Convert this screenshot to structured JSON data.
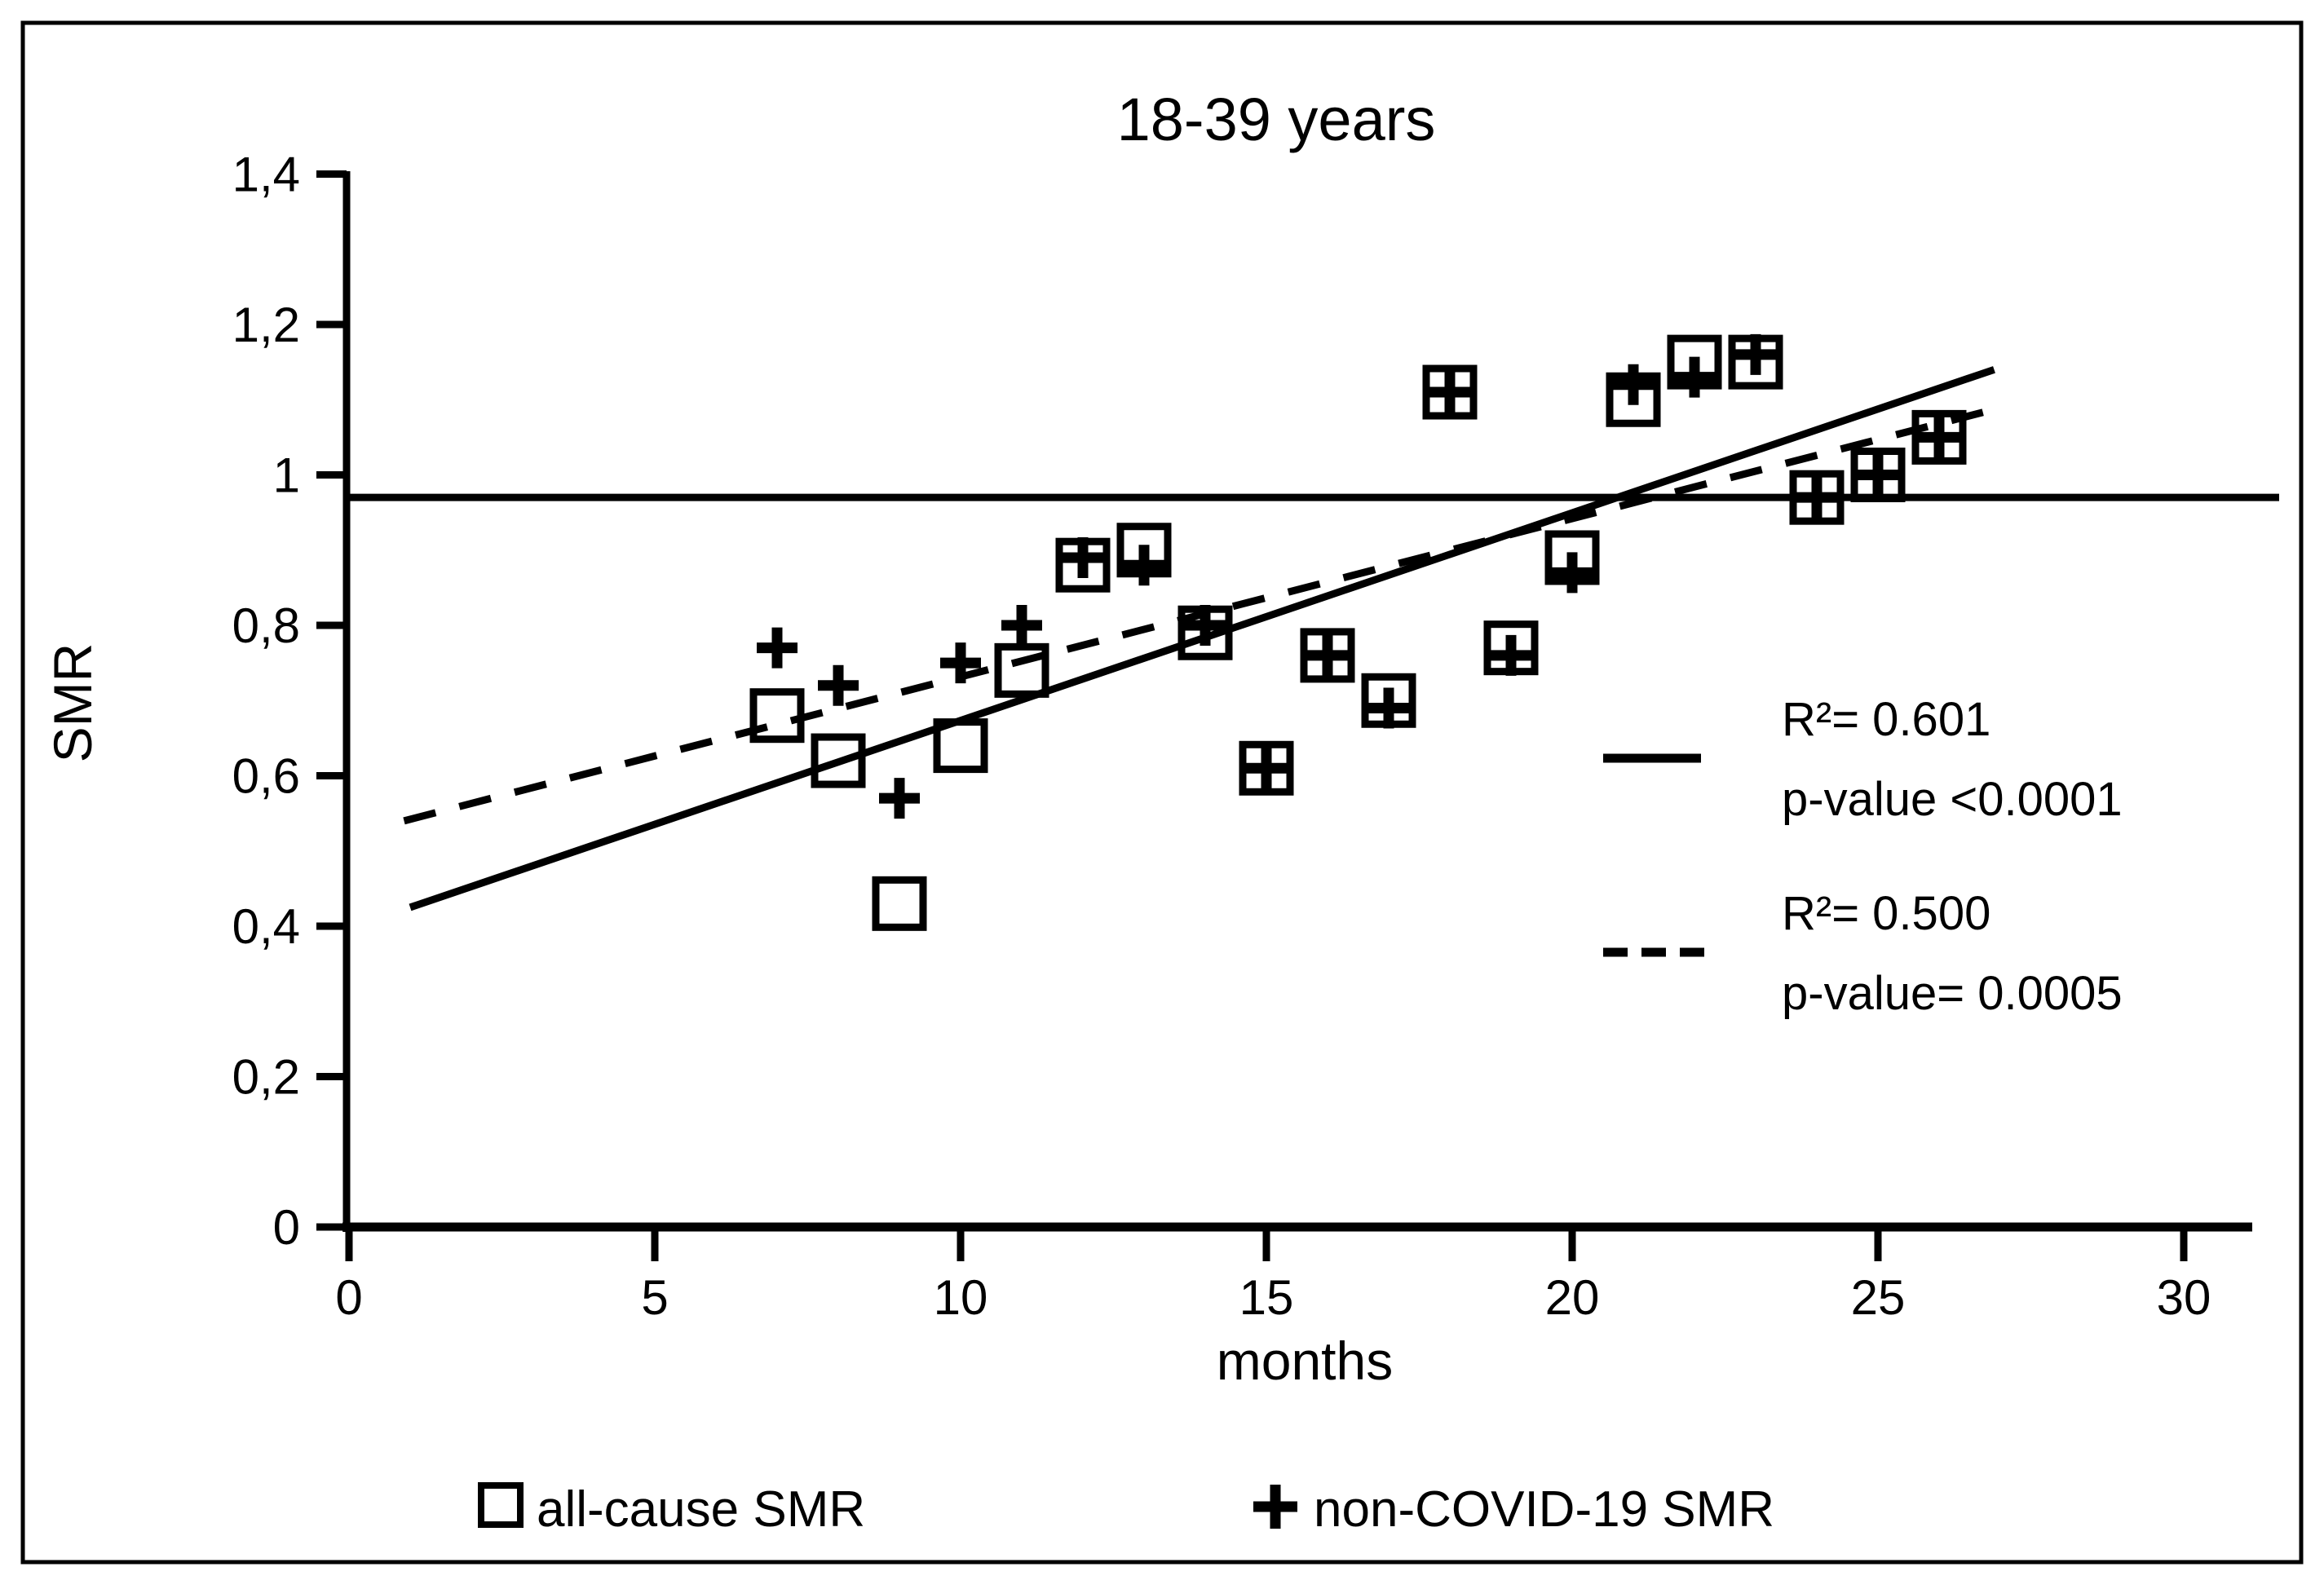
{
  "figure": {
    "background_color": "#ffffff",
    "ink_color": "#000000",
    "border": {
      "visible": true,
      "color": "#000000"
    }
  },
  "chart_data": {
    "type": "scatter",
    "title": "18-39 years",
    "xlabel": "months",
    "ylabel": "SMR",
    "xlim": [
      0,
      30
    ],
    "ylim": [
      0,
      1.4
    ],
    "x_ticks": [
      {
        "value": 0,
        "label": "0"
      },
      {
        "value": 5,
        "label": "5"
      },
      {
        "value": 10,
        "label": "10"
      },
      {
        "value": 15,
        "label": "15"
      },
      {
        "value": 20,
        "label": "20"
      },
      {
        "value": 25,
        "label": "25"
      },
      {
        "value": 30,
        "label": "30"
      }
    ],
    "y_ticks": [
      {
        "value": 1.4,
        "label": "1,4"
      },
      {
        "value": 1.2,
        "label": "1,2"
      },
      {
        "value": 1.0,
        "label": "1"
      },
      {
        "value": 0.8,
        "label": "0,8"
      },
      {
        "value": 0.6,
        "label": "0,6"
      },
      {
        "value": 0.4,
        "label": "0,4"
      },
      {
        "value": 0.2,
        "label": "0,2"
      },
      {
        "value": 0.0,
        "label": "0"
      }
    ],
    "grid": false,
    "reference_line_y": 0.97,
    "legend_position": "bottom",
    "series": [
      {
        "name": "all-cause SMR",
        "marker": "square",
        "points": [
          [
            7,
            0.68
          ],
          [
            8,
            0.62
          ],
          [
            9,
            0.43
          ],
          [
            10,
            0.64
          ],
          [
            11,
            0.74
          ],
          [
            12,
            0.88
          ],
          [
            13,
            0.9
          ],
          [
            14,
            0.79
          ],
          [
            15,
            0.61
          ],
          [
            16,
            0.76
          ],
          [
            17,
            0.7
          ],
          [
            18,
            1.11
          ],
          [
            19,
            0.77
          ],
          [
            20,
            0.89
          ],
          [
            21,
            1.1
          ],
          [
            22,
            1.15
          ],
          [
            23,
            1.15
          ],
          [
            24,
            0.97
          ],
          [
            25,
            1.0
          ],
          [
            26,
            1.05
          ]
        ]
      },
      {
        "name": "non-COVID-19 SMR",
        "marker": "plus",
        "points": [
          [
            7,
            0.77
          ],
          [
            8,
            0.72
          ],
          [
            9,
            0.57
          ],
          [
            10,
            0.75
          ],
          [
            11,
            0.8
          ],
          [
            12,
            0.89
          ],
          [
            13,
            0.88
          ],
          [
            14,
            0.8
          ],
          [
            15,
            0.61
          ],
          [
            16,
            0.76
          ],
          [
            17,
            0.69
          ],
          [
            18,
            1.11
          ],
          [
            19,
            0.76
          ],
          [
            20,
            0.87
          ],
          [
            21,
            1.12
          ],
          [
            22,
            1.13
          ],
          [
            23,
            1.16
          ],
          [
            24,
            0.97
          ],
          [
            25,
            1.0
          ],
          [
            26,
            1.05
          ]
        ]
      }
    ],
    "trendlines": [
      {
        "name": "all-cause linear fit",
        "style": "solid",
        "x": [
          1.0,
          26.9
        ],
        "y": [
          0.425,
          1.14
        ],
        "r2": 0.601,
        "r2_label": "R²= 0.601",
        "p_label": "p-value <0.0001"
      },
      {
        "name": "non-COVID-19 linear fit",
        "style": "dashed",
        "x": [
          0.9,
          26.8
        ],
        "y": [
          0.54,
          1.085
        ],
        "r2": 0.5,
        "r2_label": "R²= 0.500",
        "p_label": "p-value= 0.0005"
      }
    ]
  }
}
